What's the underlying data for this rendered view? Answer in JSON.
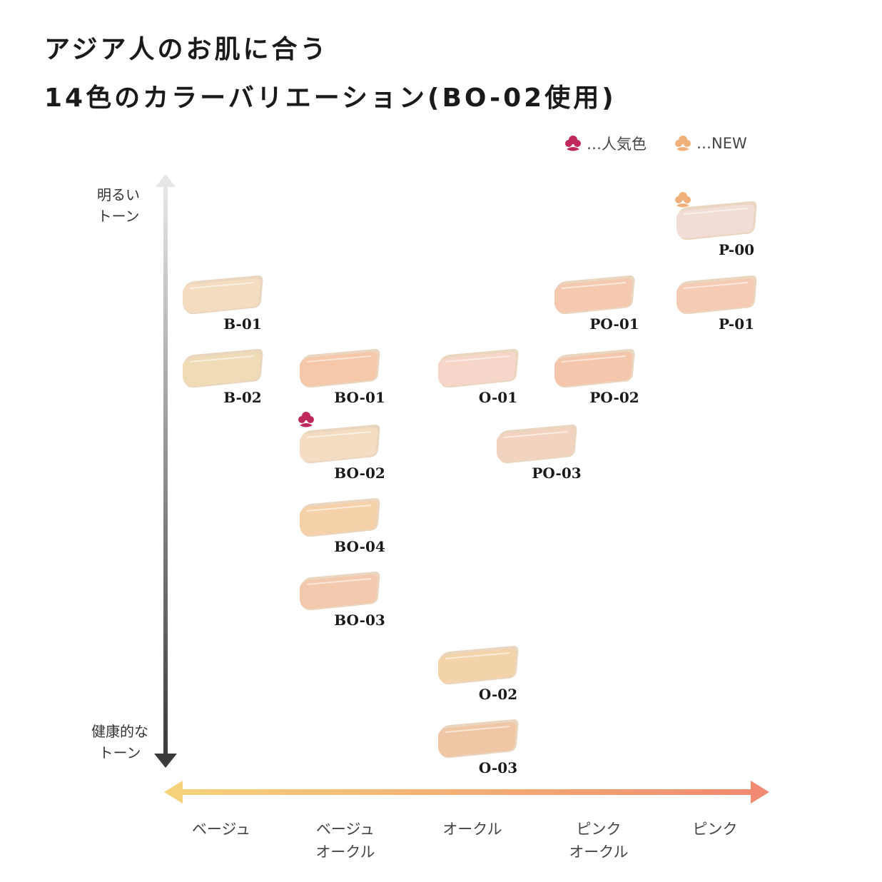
{
  "title": {
    "line1": "アジア人のお肌に合う",
    "line2": "14色のカラーバリエーション(BO-02使用)"
  },
  "legend": [
    {
      "icon": "rose-icon",
      "color": "#c0285a",
      "label": "…人気色"
    },
    {
      "icon": "rose-icon",
      "color": "#f0b07a",
      "label": "…NEW"
    }
  ],
  "y_axis": {
    "top_label": [
      "明るい",
      "トーン"
    ],
    "bottom_label": [
      "健康的な",
      "トーン"
    ]
  },
  "x_axis": {
    "categories": [
      [
        "ベージュ"
      ],
      [
        "ベージュ",
        "オークル"
      ],
      [
        "オークル"
      ],
      [
        "ピンク",
        "オークル"
      ],
      [
        "ピンク"
      ]
    ]
  },
  "shades": [
    {
      "code": "P-00",
      "color": "#f1dcd6",
      "badge": "new"
    },
    {
      "code": "B-01",
      "color": "#f3dcc0",
      "badge": ""
    },
    {
      "code": "PO-01",
      "color": "#f5c9b0",
      "badge": ""
    },
    {
      "code": "P-01",
      "color": "#f6cbb3",
      "badge": ""
    },
    {
      "code": "B-02",
      "color": "#efdcb6",
      "badge": ""
    },
    {
      "code": "BO-01",
      "color": "#f4c8a8",
      "badge": ""
    },
    {
      "code": "O-01",
      "color": "#f5d6c9",
      "badge": ""
    },
    {
      "code": "PO-02",
      "color": "#f4c6ac",
      "badge": ""
    },
    {
      "code": "BO-02",
      "color": "#f4dcc2",
      "badge": "popular"
    },
    {
      "code": "PO-03",
      "color": "#f2d3bf",
      "badge": ""
    },
    {
      "code": "BO-04",
      "color": "#f5d1a9",
      "badge": ""
    },
    {
      "code": "BO-03",
      "color": "#f2c9ad",
      "badge": ""
    },
    {
      "code": "O-02",
      "color": "#f3d3aa",
      "badge": ""
    },
    {
      "code": "O-03",
      "color": "#f0c7a4",
      "badge": ""
    }
  ]
}
